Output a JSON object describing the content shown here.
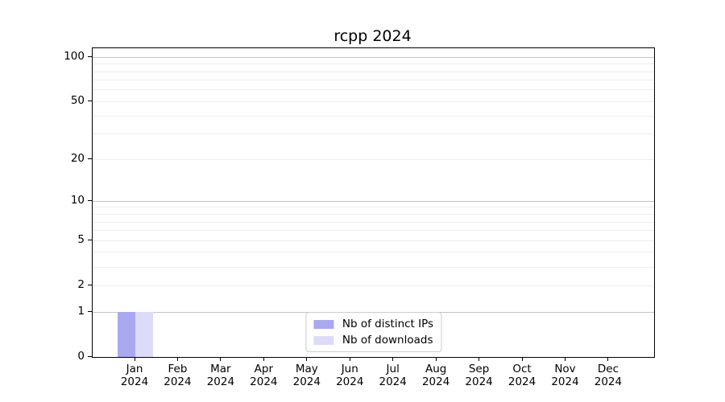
{
  "chart_data": {
    "type": "bar",
    "title": "rcpp 2024",
    "categories": [
      {
        "month": "Jan",
        "year": "2024"
      },
      {
        "month": "Feb",
        "year": "2024"
      },
      {
        "month": "Mar",
        "year": "2024"
      },
      {
        "month": "Apr",
        "year": "2024"
      },
      {
        "month": "May",
        "year": "2024"
      },
      {
        "month": "Jun",
        "year": "2024"
      },
      {
        "month": "Jul",
        "year": "2024"
      },
      {
        "month": "Aug",
        "year": "2024"
      },
      {
        "month": "Sep",
        "year": "2024"
      },
      {
        "month": "Oct",
        "year": "2024"
      },
      {
        "month": "Nov",
        "year": "2024"
      },
      {
        "month": "Dec",
        "year": "2024"
      }
    ],
    "series": [
      {
        "name": "Nb of distinct IPs",
        "color": "#a9a9f2",
        "values": [
          1,
          0,
          0,
          0,
          0,
          0,
          0,
          0,
          0,
          0,
          0,
          0
        ]
      },
      {
        "name": "Nb of downloads",
        "color": "#dcdcf8",
        "values": [
          1,
          0,
          0,
          0,
          0,
          0,
          0,
          0,
          0,
          0,
          0,
          0
        ]
      }
    ],
    "xlabel": "",
    "ylabel": "",
    "y_axis": {
      "scale": "log1p",
      "ticks": [
        100,
        50,
        20,
        10,
        5,
        2,
        1,
        0
      ],
      "max": 115,
      "major_gridlines": [
        1,
        10,
        100
      ],
      "minor_gridlines": [
        2,
        3,
        4,
        5,
        6,
        7,
        8,
        9,
        20,
        30,
        40,
        50,
        60,
        70,
        80,
        90
      ]
    },
    "grid": true,
    "legend": {
      "position": "lower center",
      "entries": [
        "Nb of distinct IPs",
        "Nb of downloads"
      ]
    }
  },
  "colors": {
    "background": "#ffffff",
    "spine": "#000000",
    "text": "#000000",
    "major_grid": "#c3c3c3",
    "minor_grid": "#ededed",
    "legend_border": "#cccccc",
    "bar_distinct_ips": "#a9a9f2",
    "bar_downloads": "#dcdcf8"
  }
}
